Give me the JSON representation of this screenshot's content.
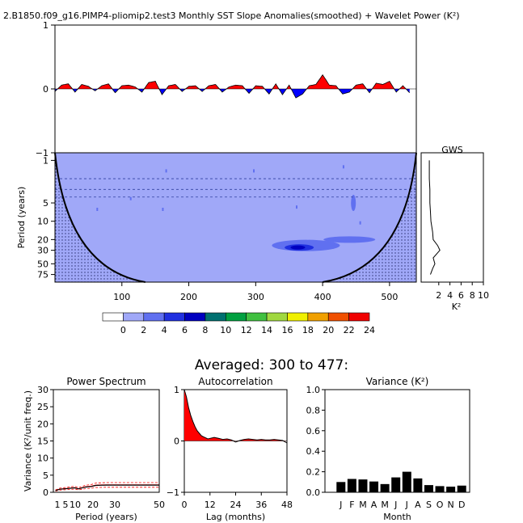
{
  "figure": {
    "title": "2.B1850.f09_g16.PIMP4-pliomip2.test3 Monthly SST Slope Anomalies(smoothed) + Wavelet Power (K²)",
    "averaged_title": "Averaged: 300 to 477:"
  },
  "colors": {
    "positive": "#ff0000",
    "negative": "#0000ff",
    "wavelet_background": "#a0a8f8",
    "mask": "#8e95df"
  },
  "chart_data": [
    {
      "id": "timeseries",
      "type": "area",
      "title": "2.B1850.f09_g16.PIMP4-pliomip2.test3 Monthly SST Slope Anomalies(smoothed) + Wavelet Power (K²)",
      "ylabel": "",
      "xlim": [
        0,
        540
      ],
      "ylim": [
        -1,
        1
      ],
      "yticks": [
        1,
        0,
        -1
      ],
      "x": [
        0,
        10,
        20,
        30,
        40,
        50,
        60,
        70,
        80,
        90,
        100,
        110,
        120,
        130,
        140,
        150,
        160,
        170,
        180,
        190,
        200,
        210,
        220,
        230,
        240,
        250,
        260,
        270,
        280,
        290,
        300,
        310,
        320,
        330,
        340,
        350,
        360,
        370,
        380,
        390,
        400,
        410,
        420,
        430,
        440,
        450,
        460,
        470,
        480,
        490,
        500,
        510,
        520,
        530
      ],
      "values": [
        -0.04,
        0.06,
        0.08,
        -0.05,
        0.07,
        0.04,
        -0.03,
        0.05,
        0.08,
        -0.06,
        0.05,
        0.06,
        0.03,
        -0.05,
        0.1,
        0.12,
        -0.09,
        0.05,
        0.07,
        -0.04,
        0.04,
        0.05,
        -0.04,
        0.05,
        0.07,
        -0.05,
        0.03,
        0.06,
        0.05,
        -0.07,
        0.05,
        0.04,
        -0.08,
        0.08,
        -0.09,
        0.06,
        -0.14,
        -0.08,
        0.05,
        0.07,
        0.22,
        0.06,
        0.05,
        -0.08,
        -0.05,
        0.06,
        0.08,
        -0.06,
        0.09,
        0.07,
        0.12,
        -0.05,
        0.05,
        -0.06
      ]
    },
    {
      "id": "wavelet",
      "type": "heatmap",
      "ylabel": "Period (years)",
      "xlim": [
        0,
        540
      ],
      "xticks": [
        100,
        200,
        300,
        400,
        500
      ],
      "yticks": [
        1,
        5,
        10,
        20,
        30,
        50,
        75
      ],
      "y_scale": "log",
      "features": "mostly 0-2 level power; strong maximum (8-10 K²) near x≈360, period≈28 yr; cone of influence shaded at edges",
      "colorbar_levels": [
        0,
        2,
        4,
        6,
        8,
        10,
        12,
        14,
        16,
        18,
        20,
        22,
        24
      ],
      "colorbar_colors": [
        "#ffffff",
        "#a0a8f8",
        "#6070f0",
        "#2030e0",
        "#0000c0",
        "#007070",
        "#00a040",
        "#40c040",
        "#a0d840",
        "#f0f000",
        "#f0a000",
        "#f05000",
        "#f00000"
      ]
    },
    {
      "id": "gws",
      "type": "line",
      "title": "GWS",
      "xlabel": "K²",
      "xticks": [
        2,
        4,
        6,
        8,
        10
      ],
      "y_period": [
        1,
        2,
        3,
        5,
        7,
        10,
        15,
        20,
        25,
        30,
        40,
        50,
        60,
        75
      ],
      "values": [
        0.3,
        0.3,
        0.4,
        0.4,
        0.5,
        0.6,
        0.9,
        1.0,
        1.8,
        2.2,
        1.0,
        1.3,
        0.9,
        0.5
      ]
    },
    {
      "id": "power_spectrum",
      "type": "line",
      "title": "Power Spectrum",
      "xlabel": "Period (years)",
      "ylabel": "Variance (K²/unit freq.)",
      "xlim": [
        0,
        50
      ],
      "ylim": [
        0,
        30
      ],
      "xticks": [
        "1",
        "5",
        "10",
        "20",
        "30",
        "50"
      ],
      "yticks": [
        0,
        5,
        10,
        15,
        20,
        25,
        30
      ],
      "series": [
        {
          "x": [
            1,
            3,
            5,
            7,
            10,
            12,
            15,
            18,
            20,
            25,
            30,
            40,
            50
          ],
          "values": [
            0.5,
            0.9,
            1.0,
            1.1,
            1.3,
            1.0,
            1.5,
            1.7,
            2.0,
            2.1,
            2.1,
            2.1,
            2.1
          ]
        }
      ]
    },
    {
      "id": "autocorrelation",
      "type": "area",
      "title": "Autocorrelation",
      "xlabel": "Lag (months)",
      "xlim": [
        0,
        48
      ],
      "ylim": [
        -1,
        1
      ],
      "xticks": [
        0,
        12,
        24,
        36,
        48
      ],
      "yticks": [
        1,
        0,
        -1
      ],
      "x": [
        0,
        1,
        2,
        3,
        4,
        5,
        6,
        7,
        8,
        9,
        10,
        11,
        12,
        14,
        16,
        18,
        20,
        22,
        24,
        26,
        28,
        30,
        32,
        34,
        36,
        38,
        40,
        42,
        44,
        46,
        48
      ],
      "values": [
        1.0,
        0.86,
        0.65,
        0.5,
        0.38,
        0.28,
        0.2,
        0.15,
        0.1,
        0.08,
        0.06,
        0.04,
        0.05,
        0.07,
        0.05,
        0.03,
        0.04,
        0.02,
        -0.02,
        0.01,
        0.03,
        0.04,
        0.03,
        0.02,
        0.03,
        0.02,
        0.02,
        0.03,
        0.02,
        0.01,
        -0.04
      ]
    },
    {
      "id": "variance",
      "type": "bar",
      "title": "Variance (K²)",
      "xlabel": "Month",
      "ylim": [
        0,
        1
      ],
      "yticks": [
        0.0,
        0.2,
        0.4,
        0.6,
        0.8,
        1.0
      ],
      "categories": [
        "J",
        "F",
        "M",
        "A",
        "M",
        "J",
        "J",
        "A",
        "S",
        "O",
        "N",
        "D"
      ],
      "values": [
        0.1,
        0.13,
        0.125,
        0.105,
        0.08,
        0.145,
        0.2,
        0.135,
        0.07,
        0.06,
        0.055,
        0.065
      ]
    }
  ]
}
